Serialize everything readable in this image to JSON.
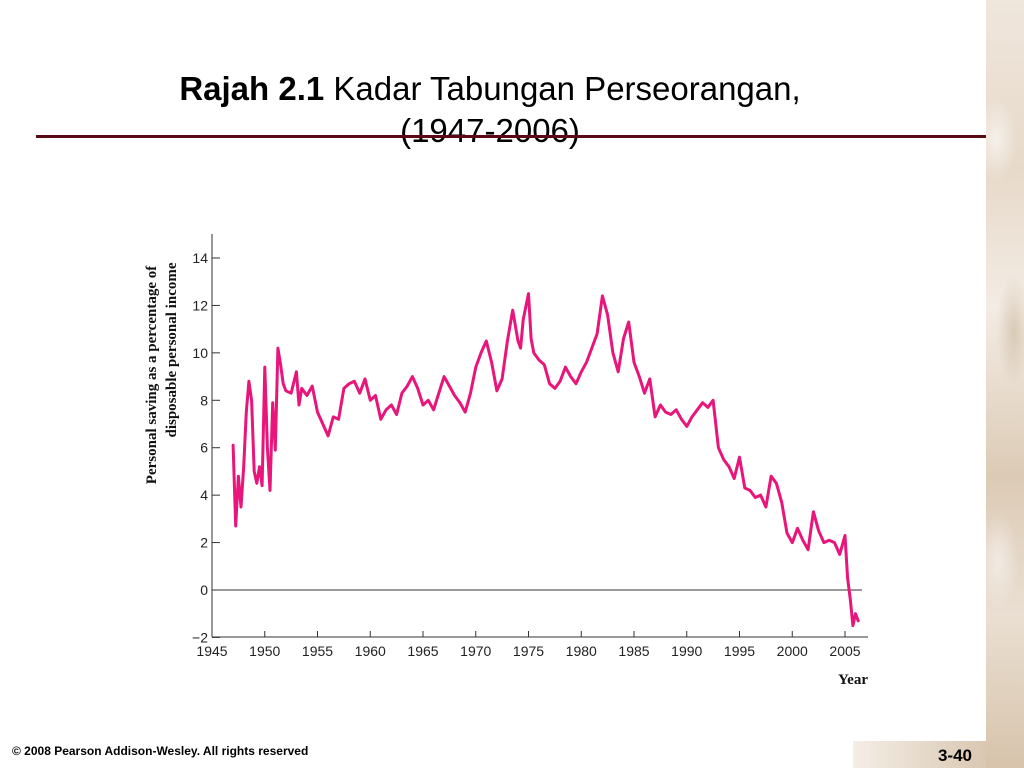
{
  "slide": {
    "title_bold": "Rajah 2.1",
    "title_rest": "Kadar Tabungan Perseorangan,",
    "title_line2": "(1947-2006)",
    "footer": "© 2008 Pearson Addison-Wesley. All rights reserved",
    "page_number": "3-40"
  },
  "colors": {
    "line": "#e8157a",
    "rule": "#5a0a14",
    "axis": "#333333"
  },
  "chart_data": {
    "type": "line",
    "title": "",
    "xlabel": "Year",
    "ylabel_line1": "Personal saving as a percentage of",
    "ylabel_line2": "disposable personal income",
    "xlim": [
      1945,
      2007
    ],
    "ylim": [
      -2,
      15
    ],
    "x_ticks": [
      1945,
      1950,
      1955,
      1960,
      1965,
      1970,
      1975,
      1980,
      1985,
      1990,
      1995,
      2000,
      2005
    ],
    "x_tick_labels": [
      "1945",
      "1950",
      "1955",
      "1960",
      "1965",
      "1970",
      "1975",
      "1980",
      "1985",
      "1990",
      "1995",
      "2000",
      "2005"
    ],
    "y_ticks": [
      -2,
      0,
      2,
      4,
      6,
      8,
      10,
      12,
      14
    ],
    "y_tick_labels": [
      "−2",
      "0",
      "2",
      "4",
      "6",
      "8",
      "10",
      "12",
      "14"
    ],
    "zero_line": true,
    "grid": false,
    "series": [
      {
        "x": [
          1947.0,
          1947.25,
          1947.5,
          1947.75,
          1948.0,
          1948.25,
          1948.5,
          1948.75,
          1949.0,
          1949.25,
          1949.5,
          1949.75,
          1950.0,
          1950.25,
          1950.5,
          1950.75,
          1951.0,
          1951.25,
          1951.5,
          1951.75,
          1952.0,
          1952.5,
          1953.0,
          1953.25,
          1953.5,
          1954.0,
          1954.5,
          1955.0,
          1955.5,
          1956.0,
          1956.5,
          1957.0,
          1957.5,
          1958.0,
          1958.5,
          1959.0,
          1959.5,
          1960.0,
          1960.5,
          1961.0,
          1961.5,
          1962.0,
          1962.5,
          1963.0,
          1963.5,
          1964.0,
          1964.5,
          1965.0,
          1965.5,
          1966.0,
          1966.5,
          1967.0,
          1967.5,
          1968.0,
          1968.5,
          1969.0,
          1969.5,
          1970.0,
          1970.5,
          1971.0,
          1971.5,
          1972.0,
          1972.5,
          1973.0,
          1973.5,
          1974.0,
          1974.25,
          1974.5,
          1975.0,
          1975.25,
          1975.5,
          1976.0,
          1976.5,
          1977.0,
          1977.5,
          1978.0,
          1978.5,
          1979.0,
          1979.5,
          1980.0,
          1980.5,
          1981.0,
          1981.5,
          1982.0,
          1982.5,
          1983.0,
          1983.5,
          1984.0,
          1984.5,
          1985.0,
          1985.5,
          1986.0,
          1986.5,
          1987.0,
          1987.5,
          1988.0,
          1988.5,
          1989.0,
          1989.5,
          1990.0,
          1990.5,
          1991.0,
          1991.5,
          1992.0,
          1992.5,
          1993.0,
          1993.5,
          1994.0,
          1994.5,
          1995.0,
          1995.5,
          1996.0,
          1996.5,
          1997.0,
          1997.5,
          1998.0,
          1998.5,
          1999.0,
          1999.5,
          2000.0,
          2000.5,
          2001.0,
          2001.5,
          2002.0,
          2002.5,
          2003.0,
          2003.5,
          2004.0,
          2004.5,
          2005.0,
          2005.25,
          2005.5,
          2005.75,
          2006.0,
          2006.25
        ],
        "y": [
          6.1,
          2.7,
          4.8,
          3.5,
          5.2,
          7.5,
          8.8,
          8.0,
          5.0,
          4.5,
          5.2,
          4.4,
          9.4,
          6.0,
          4.2,
          7.9,
          5.9,
          10.2,
          9.5,
          8.7,
          8.4,
          8.3,
          9.2,
          7.8,
          8.5,
          8.2,
          8.6,
          7.5,
          7.0,
          6.5,
          7.3,
          7.2,
          8.5,
          8.7,
          8.8,
          8.3,
          8.9,
          8.0,
          8.2,
          7.2,
          7.6,
          7.8,
          7.4,
          8.3,
          8.6,
          9.0,
          8.5,
          7.8,
          8.0,
          7.6,
          8.3,
          9.0,
          8.6,
          8.2,
          7.9,
          7.5,
          8.3,
          9.4,
          10.0,
          10.5,
          9.6,
          8.4,
          8.9,
          10.5,
          11.8,
          10.5,
          10.2,
          11.4,
          12.5,
          10.6,
          10.0,
          9.7,
          9.5,
          8.7,
          8.5,
          8.8,
          9.4,
          9.0,
          8.7,
          9.2,
          9.6,
          10.2,
          10.8,
          12.4,
          11.6,
          10.0,
          9.2,
          10.6,
          11.3,
          9.6,
          9.0,
          8.3,
          8.9,
          7.3,
          7.8,
          7.5,
          7.4,
          7.6,
          7.2,
          6.9,
          7.3,
          7.6,
          7.9,
          7.7,
          8.0,
          6.0,
          5.5,
          5.2,
          4.7,
          5.6,
          4.3,
          4.2,
          3.9,
          4.0,
          3.5,
          4.8,
          4.5,
          3.7,
          2.4,
          2.0,
          2.6,
          2.1,
          1.7,
          3.3,
          2.5,
          2.0,
          2.1,
          2.0,
          1.5,
          2.3,
          0.5,
          -0.4,
          -1.5,
          -1.0,
          -1.3
        ]
      }
    ]
  }
}
